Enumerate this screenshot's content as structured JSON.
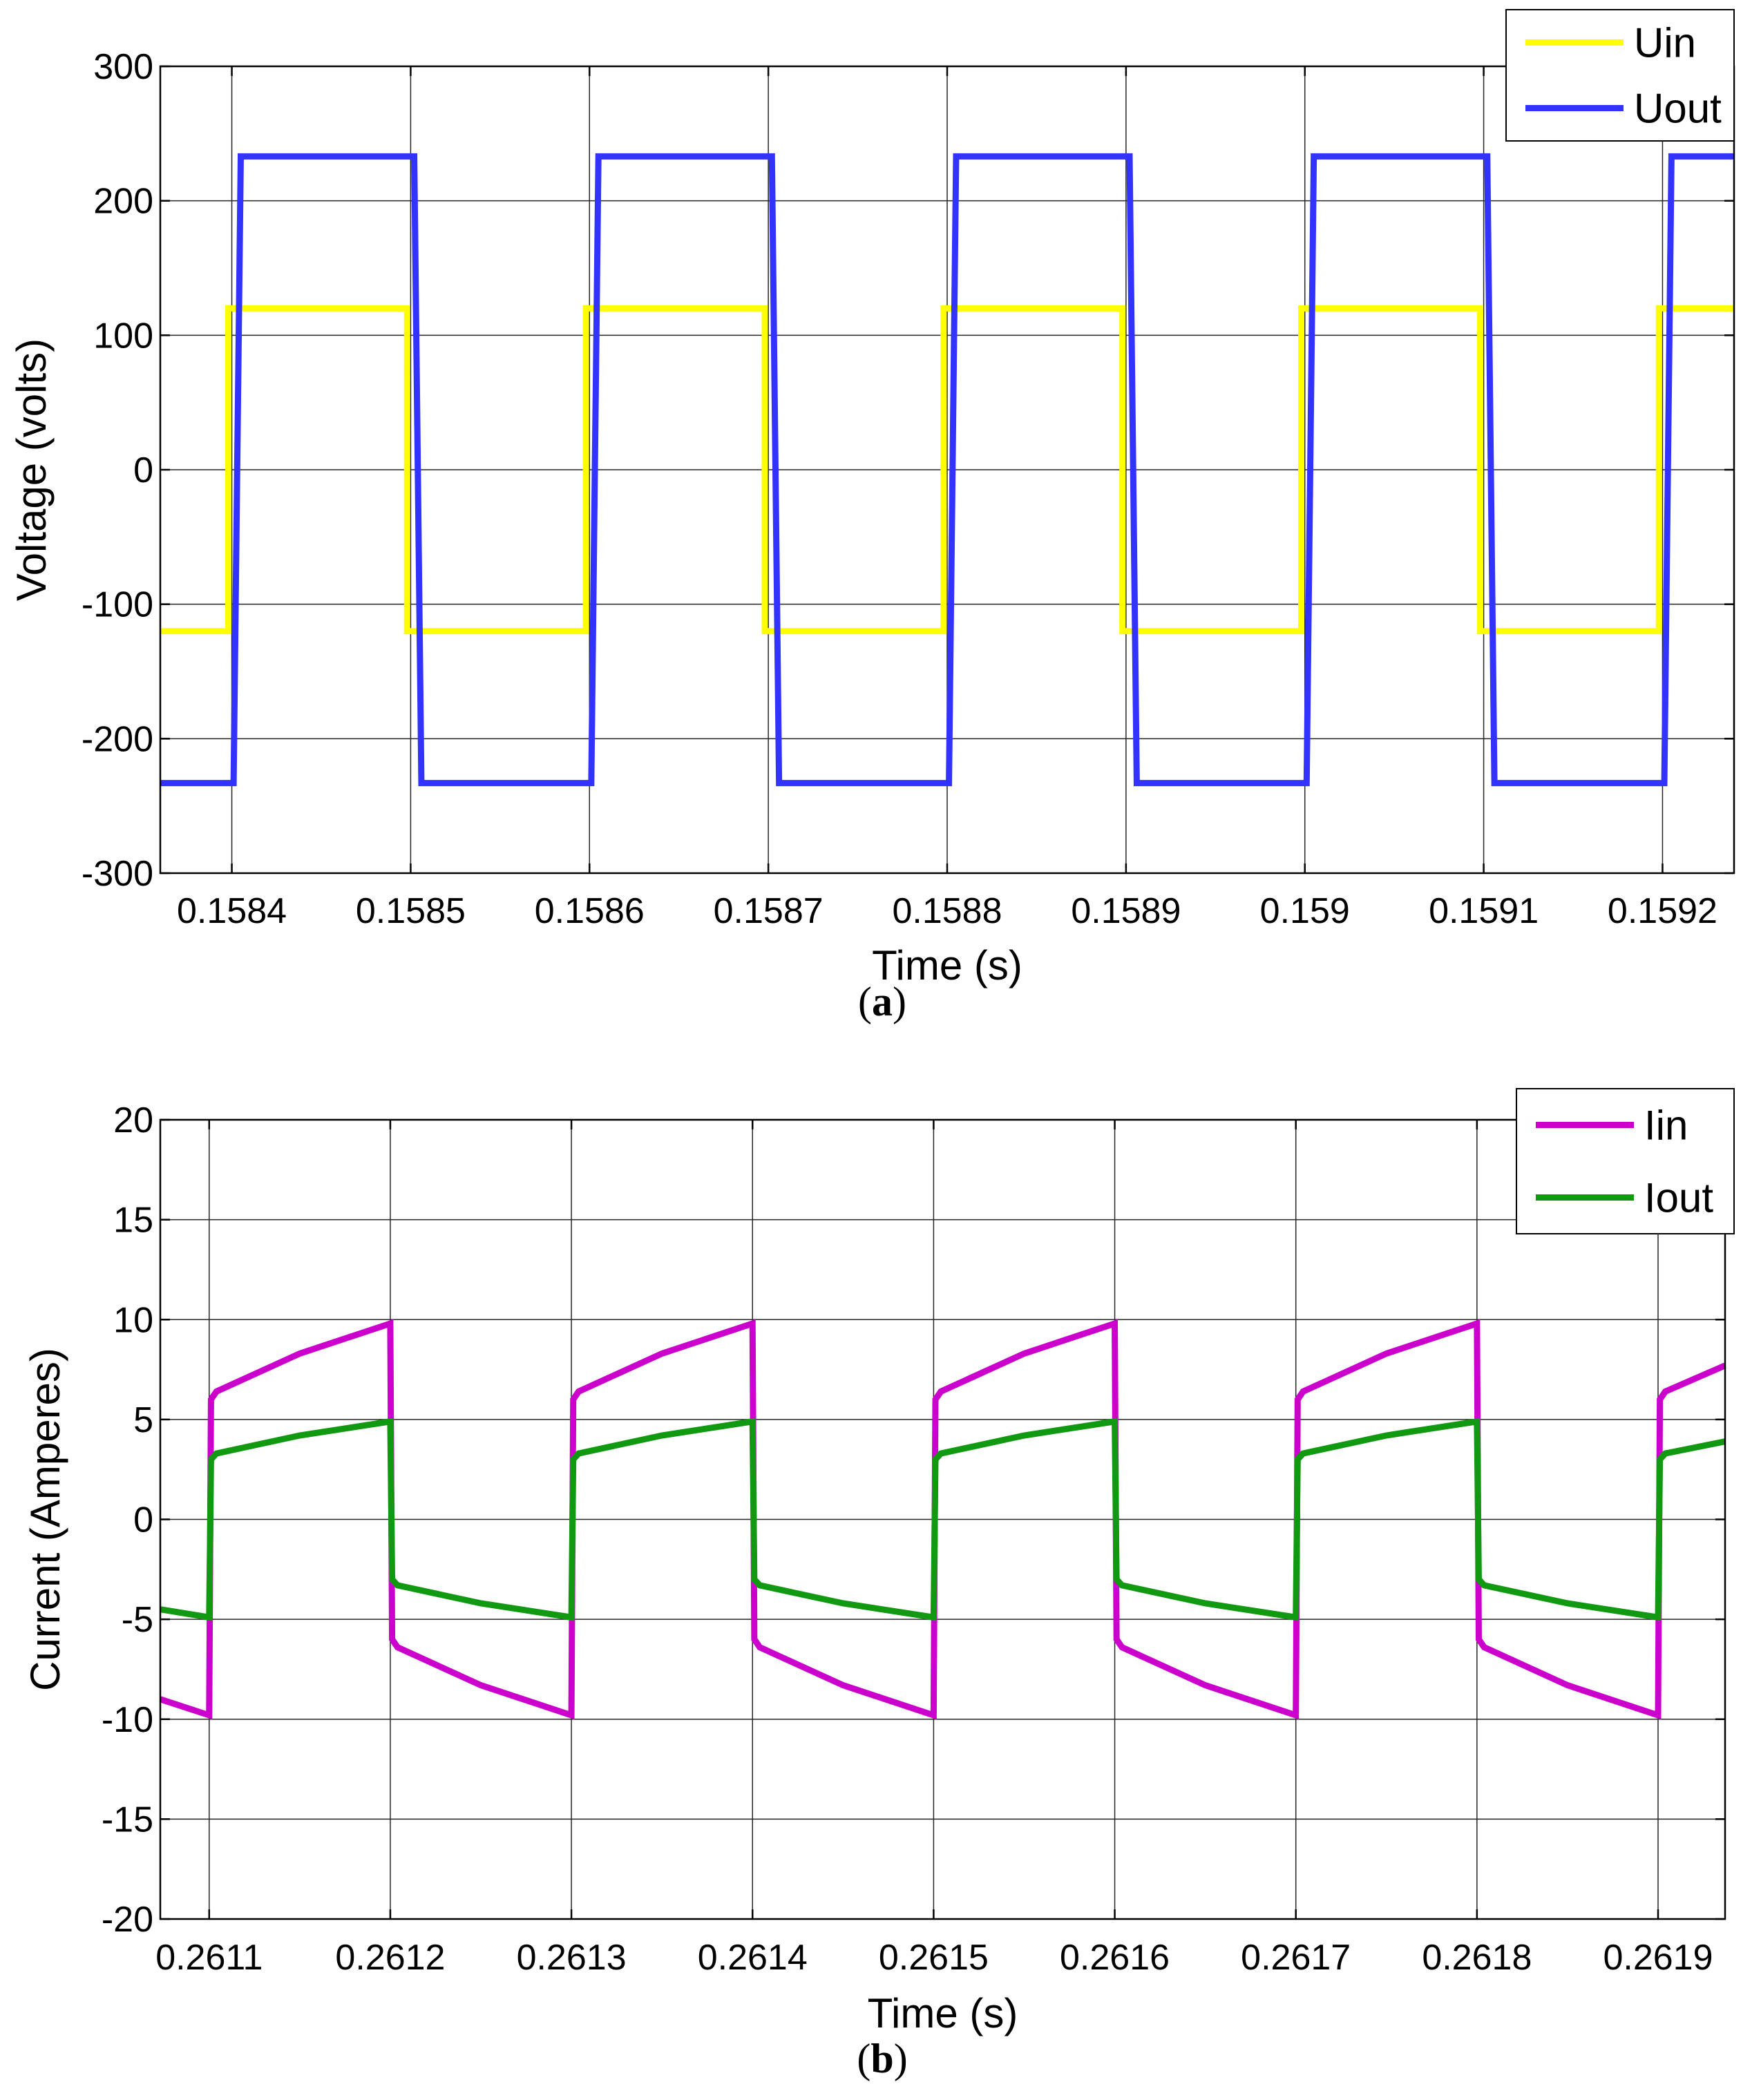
{
  "chart_data": [
    {
      "type": "line",
      "panel": "a",
      "caption": {
        "open": "(",
        "letter": "a",
        "close": ")"
      },
      "xlabel": "Time (s)",
      "ylabel": "Voltage (volts)",
      "xlim": [
        0.15836,
        0.15924
      ],
      "ylim": [
        -300,
        300
      ],
      "xticks": [
        0.1584,
        0.1585,
        0.1586,
        0.1587,
        0.1588,
        0.1589,
        0.159,
        0.1591,
        0.1592
      ],
      "xtick_labels": [
        "0.1584",
        "0.1585",
        "0.1586",
        "0.1587",
        "0.1588",
        "0.1589",
        "0.159",
        "0.1591",
        "0.1592"
      ],
      "yticks": [
        300,
        200,
        100,
        0,
        -100,
        -200,
        -300
      ],
      "ytick_labels": [
        "300",
        "200",
        "100",
        "0",
        "-100",
        "-200",
        "-300"
      ],
      "grid": true,
      "legend_position": "top-right",
      "series": [
        {
          "name": "Uin",
          "color": "#ffff00",
          "x": [
            0.15836,
            0.158398,
            0.158398,
            0.158498,
            0.158498,
            0.158598,
            0.158598,
            0.158698,
            0.158698,
            0.158798,
            0.158798,
            0.158898,
            0.158898,
            0.158998,
            0.158998,
            0.159098,
            0.159098,
            0.159198,
            0.159198,
            0.15924
          ],
          "y": [
            -120,
            -120,
            120,
            120,
            -120,
            -120,
            120,
            120,
            -120,
            -120,
            120,
            120,
            -120,
            -120,
            120,
            120,
            -120,
            -120,
            120,
            120
          ]
        },
        {
          "name": "Uout",
          "color": "#3333ff",
          "x": [
            0.15836,
            0.158401,
            0.158405,
            0.158502,
            0.158506,
            0.158601,
            0.158605,
            0.158702,
            0.158706,
            0.158801,
            0.158805,
            0.158902,
            0.158906,
            0.159001,
            0.159005,
            0.159102,
            0.159106,
            0.159201,
            0.159205,
            0.15924
          ],
          "y": [
            -233,
            -233,
            233,
            233,
            -233,
            -233,
            233,
            233,
            -233,
            -233,
            233,
            233,
            -233,
            -233,
            233,
            233,
            -233,
            -233,
            233,
            233
          ]
        }
      ]
    },
    {
      "type": "line",
      "panel": "b",
      "caption": {
        "open": "(",
        "letter": "b",
        "close": ")"
      },
      "xlabel": "Time (s)",
      "ylabel": "Current (Amperes)",
      "xlim": [
        0.261073,
        0.261937
      ],
      "ylim": [
        -20,
        20
      ],
      "xticks": [
        0.2611,
        0.2612,
        0.2613,
        0.2614,
        0.2615,
        0.2616,
        0.2617,
        0.2618,
        0.2619
      ],
      "xtick_labels": [
        "0.2611",
        "0.2612",
        "0.2613",
        "0.2614",
        "0.2615",
        "0.2616",
        "0.2617",
        "0.2618",
        "0.2619"
      ],
      "yticks": [
        20,
        15,
        10,
        5,
        0,
        -5,
        -10,
        -15,
        -20
      ],
      "ytick_labels": [
        "20",
        "15",
        "10",
        "5",
        "0",
        "-5",
        "-10",
        "-15",
        "-20"
      ],
      "grid": true,
      "legend_position": "top-right",
      "series": [
        {
          "name": "Iin",
          "color": "#cc00cc",
          "x": [
            0.261073,
            0.2611,
            0.261101,
            0.261104,
            0.26115,
            0.2612,
            0.261201,
            0.261204,
            0.26125,
            0.2613,
            0.261301,
            0.261304,
            0.26135,
            0.2614,
            0.261401,
            0.261404,
            0.26145,
            0.2615,
            0.261501,
            0.261504,
            0.26155,
            0.2616,
            0.261601,
            0.261604,
            0.26165,
            0.2617,
            0.261701,
            0.261704,
            0.26175,
            0.2618,
            0.261801,
            0.261804,
            0.26185,
            0.2619,
            0.261901,
            0.261904,
            0.261937
          ],
          "y": [
            -9.0,
            -9.8,
            6.0,
            6.4,
            8.3,
            9.8,
            -6.0,
            -6.4,
            -8.3,
            -9.8,
            6.0,
            6.4,
            8.3,
            9.8,
            -6.0,
            -6.4,
            -8.3,
            -9.8,
            6.0,
            6.4,
            8.3,
            9.8,
            -6.0,
            -6.4,
            -8.3,
            -9.8,
            6.0,
            6.4,
            8.3,
            9.8,
            -6.0,
            -6.4,
            -8.3,
            -9.8,
            6.0,
            6.4,
            7.7
          ]
        },
        {
          "name": "Iout",
          "color": "#119911",
          "x": [
            0.261073,
            0.2611,
            0.261101,
            0.261104,
            0.26115,
            0.2612,
            0.261201,
            0.261204,
            0.26125,
            0.2613,
            0.261301,
            0.261304,
            0.26135,
            0.2614,
            0.261401,
            0.261404,
            0.26145,
            0.2615,
            0.261501,
            0.261504,
            0.26155,
            0.2616,
            0.261601,
            0.261604,
            0.26165,
            0.2617,
            0.261701,
            0.261704,
            0.26175,
            0.2618,
            0.261801,
            0.261804,
            0.26185,
            0.2619,
            0.261901,
            0.261904,
            0.261937
          ],
          "y": [
            -4.5,
            -4.9,
            3.0,
            3.3,
            4.2,
            4.9,
            -3.0,
            -3.3,
            -4.2,
            -4.9,
            3.0,
            3.3,
            4.2,
            4.9,
            -3.0,
            -3.3,
            -4.2,
            -4.9,
            3.0,
            3.3,
            4.2,
            4.9,
            -3.0,
            -3.3,
            -4.2,
            -4.9,
            3.0,
            3.3,
            4.2,
            4.9,
            -3.0,
            -3.3,
            -4.2,
            -4.9,
            3.0,
            3.3,
            3.9
          ]
        }
      ]
    }
  ]
}
